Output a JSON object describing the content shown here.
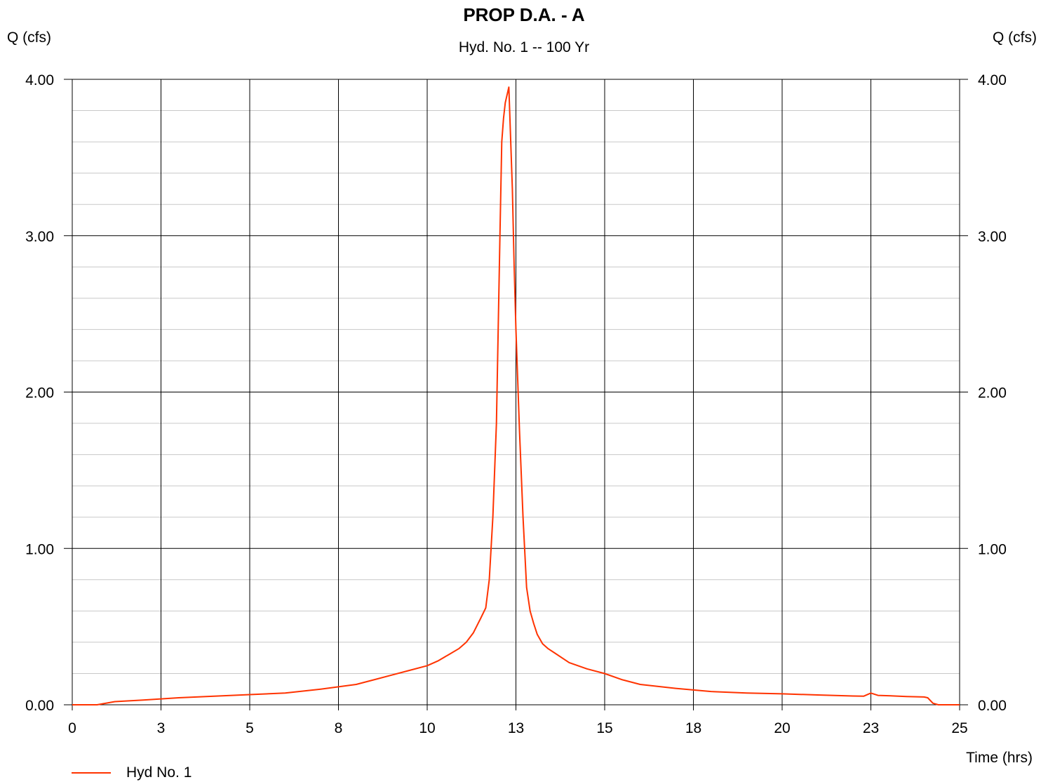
{
  "chart_data": {
    "type": "line",
    "title": "PROP D.A. - A",
    "subtitle": "Hyd. No. 1 -- 100 Yr",
    "ylabel_left": "Q (cfs)",
    "ylabel_right": "Q (cfs)",
    "xlabel": "Time (hrs)",
    "xlim": [
      0,
      25
    ],
    "ylim": [
      0,
      4
    ],
    "x_ticks": [
      0,
      2.5,
      5,
      7.5,
      10,
      12.5,
      15,
      17.5,
      20,
      22.5,
      25
    ],
    "x_tick_labels": [
      "0",
      "3",
      "5",
      "8",
      "10",
      "13",
      "15",
      "18",
      "20",
      "23",
      "25"
    ],
    "y_ticks": [
      0,
      1,
      2,
      3,
      4
    ],
    "y_tick_labels": [
      "0.00",
      "1.00",
      "2.00",
      "3.00",
      "4.00"
    ],
    "y_minor_step": 0.2,
    "grid": true,
    "legend_position": "bottom-left",
    "series": [
      {
        "name": "Hyd No. 1",
        "color": "#ff3300",
        "x": [
          0,
          0.7,
          1.2,
          2,
          3,
          4,
          5,
          6,
          7,
          8,
          8.5,
          9,
          9.5,
          10,
          10.3,
          10.6,
          10.9,
          11.1,
          11.3,
          11.5,
          11.65,
          11.75,
          11.85,
          11.95,
          12.05,
          12.1,
          12.15,
          12.2,
          12.3,
          12.4,
          12.45,
          12.5,
          12.6,
          12.7,
          12.8,
          12.9,
          13.0,
          13.1,
          13.25,
          13.4,
          13.6,
          14,
          14.5,
          15,
          15.5,
          16,
          17,
          18,
          19,
          20,
          21,
          22,
          22.3,
          22.5,
          22.7,
          23,
          23.5,
          24,
          24.1,
          24.25,
          24.4,
          25
        ],
        "y": [
          0,
          0,
          0.02,
          0.03,
          0.045,
          0.055,
          0.065,
          0.075,
          0.1,
          0.13,
          0.16,
          0.19,
          0.22,
          0.25,
          0.28,
          0.32,
          0.36,
          0.4,
          0.46,
          0.55,
          0.62,
          0.8,
          1.2,
          1.8,
          3.0,
          3.6,
          3.75,
          3.85,
          3.95,
          3.3,
          2.8,
          2.4,
          1.75,
          1.2,
          0.75,
          0.6,
          0.52,
          0.45,
          0.39,
          0.36,
          0.33,
          0.27,
          0.23,
          0.2,
          0.16,
          0.13,
          0.105,
          0.085,
          0.075,
          0.07,
          0.063,
          0.056,
          0.055,
          0.075,
          0.06,
          0.058,
          0.053,
          0.05,
          0.045,
          0.01,
          0,
          0
        ]
      }
    ]
  }
}
